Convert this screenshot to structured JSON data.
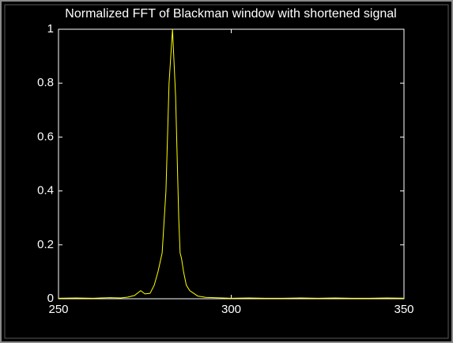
{
  "chart_data": {
    "type": "line",
    "title": "Normalized FFT of Blackman window with shortened signal",
    "x": [
      250,
      255,
      260,
      265,
      268,
      270,
      272,
      273.8,
      275,
      276.5,
      277.7,
      278.8,
      280,
      281.1,
      282,
      283,
      283.9,
      284.8,
      285.2,
      285.6,
      286.2,
      287,
      288,
      290.3,
      292.6,
      295,
      300,
      305,
      310,
      315,
      320,
      325,
      330,
      335,
      340,
      345,
      350
    ],
    "series": [
      {
        "color": "#ffff00",
        "values": [
          0.002,
          0.003,
          0.002,
          0.004,
          0.003,
          0.006,
          0.012,
          0.03,
          0.018,
          0.02,
          0.05,
          0.1,
          0.17,
          0.4,
          0.8,
          1,
          0.75,
          0.3,
          0.17,
          0.15,
          0.1,
          0.05,
          0.03,
          0.01,
          0.005,
          0.004,
          0.002,
          0.003,
          0.002,
          0.002,
          0.003,
          0.002,
          0.003,
          0.002,
          0.002,
          0.003,
          0.002
        ]
      }
    ],
    "xlim": [
      250,
      350
    ],
    "ylim": [
      0,
      1
    ],
    "xticks": [
      250,
      300,
      350
    ],
    "yticks": [
      0,
      0.2,
      0.4,
      0.6,
      0.8,
      1
    ]
  }
}
